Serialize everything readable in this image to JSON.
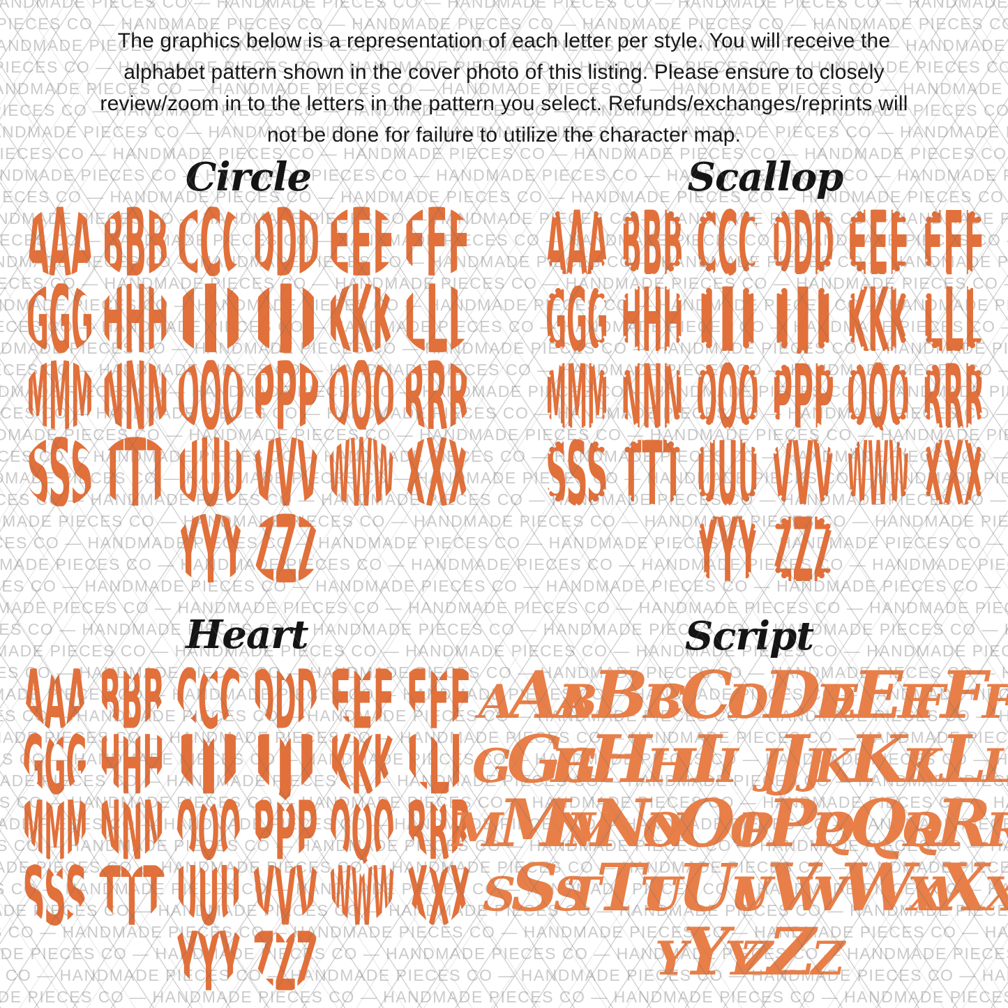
{
  "disclaimer": {
    "lines": [
      "The graphics below is a representation of each letter per style. You will receive the",
      "alphabet pattern shown in the cover photo of this listing. Please ensure to closely",
      "review/zoom in to the letters in the pattern you select. Refunds/exchanges/reprints will",
      "not be done for failure to utilize the character map."
    ]
  },
  "watermark": {
    "phrase": "HANDMADE PIECES CO",
    "separator": " — "
  },
  "sections": [
    {
      "id": "circle",
      "title": "Circle",
      "shape": "circle"
    },
    {
      "id": "scallop",
      "title": "Scallop",
      "shape": "scallop"
    },
    {
      "id": "heart",
      "title": "Heart",
      "shape": "heart"
    },
    {
      "id": "script",
      "title": "Script",
      "shape": "script"
    }
  ],
  "alphabet": [
    "A",
    "B",
    "C",
    "D",
    "E",
    "F",
    "G",
    "H",
    "I",
    "J",
    "K",
    "L",
    "M",
    "N",
    "O",
    "P",
    "Q",
    "R",
    "S",
    "T",
    "U",
    "V",
    "W",
    "X",
    "Y",
    "Z"
  ],
  "repeat_per_tile": 3,
  "grid_columns": 6,
  "colors": {
    "monogram": "#E2703A",
    "script": "#E87F48",
    "titles": "#141414",
    "disclaimer_text": "#161616",
    "watermark_text": "#c8c8c8",
    "lattice_line": "#696969",
    "background": "#ffffff"
  }
}
